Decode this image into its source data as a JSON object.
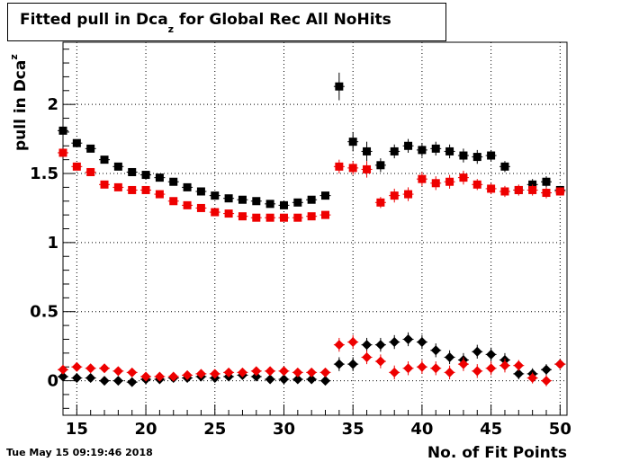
{
  "title": {
    "main": "Fitted pull in Dca",
    "sub": "z",
    "rest": " for Global Rec All NoHits"
  },
  "timestamp": "Tue May 15 09:19:46 2018",
  "colors": {
    "black": "#000000",
    "red": "#ee0000",
    "grid": "#000000"
  },
  "chart_data": {
    "type": "scatter",
    "xlabel": "No. of Fit Points",
    "ylabel": "pull in Dca",
    "ylabel_sub": "z",
    "xlim": [
      14,
      50.5
    ],
    "ylim": [
      -0.25,
      2.45
    ],
    "xticks": [
      15,
      20,
      25,
      30,
      35,
      40,
      45,
      50
    ],
    "yticks": [
      0,
      0.5,
      1,
      1.5,
      2
    ],
    "ytick_labels": [
      "0",
      "0.5",
      "1",
      "1.5",
      "2"
    ],
    "grid": true,
    "series": [
      {
        "marker": "square",
        "color": "#000000",
        "points": [
          [
            14,
            1.81,
            0.02
          ],
          [
            15,
            1.72,
            0.02
          ],
          [
            16,
            1.68,
            0.02
          ],
          [
            17,
            1.6,
            0.02
          ],
          [
            18,
            1.55,
            0.02
          ],
          [
            19,
            1.51,
            0.02
          ],
          [
            20,
            1.49,
            0.02
          ],
          [
            21,
            1.47,
            0.02
          ],
          [
            22,
            1.44,
            0.02
          ],
          [
            23,
            1.4,
            0.02
          ],
          [
            24,
            1.37,
            0.02
          ],
          [
            25,
            1.34,
            0.02
          ],
          [
            26,
            1.32,
            0.02
          ],
          [
            27,
            1.31,
            0.02
          ],
          [
            28,
            1.3,
            0.02
          ],
          [
            29,
            1.28,
            0.02
          ],
          [
            30,
            1.27,
            0.02
          ],
          [
            31,
            1.29,
            0.02
          ],
          [
            32,
            1.31,
            0.02
          ],
          [
            33,
            1.34,
            0.02
          ],
          [
            34,
            2.13,
            0.1
          ],
          [
            35,
            1.73,
            0.07
          ],
          [
            36,
            1.66,
            0.07
          ],
          [
            37,
            1.56,
            0.05
          ],
          [
            38,
            1.66,
            0.05
          ],
          [
            39,
            1.7,
            0.05
          ],
          [
            40,
            1.67,
            0.05
          ],
          [
            41,
            1.68,
            0.05
          ],
          [
            42,
            1.66,
            0.05
          ],
          [
            43,
            1.63,
            0.05
          ],
          [
            44,
            1.62,
            0.05
          ],
          [
            45,
            1.63,
            0.04
          ],
          [
            46,
            1.55,
            0.04
          ],
          [
            47,
            1.38,
            0.03
          ],
          [
            48,
            1.42,
            0.04
          ],
          [
            49,
            1.44,
            0.04
          ],
          [
            50,
            1.38,
            0.03
          ]
        ]
      },
      {
        "marker": "square",
        "color": "#ee0000",
        "points": [
          [
            14,
            1.65,
            0.02
          ],
          [
            15,
            1.55,
            0.02
          ],
          [
            16,
            1.51,
            0.02
          ],
          [
            17,
            1.42,
            0.02
          ],
          [
            18,
            1.4,
            0.02
          ],
          [
            19,
            1.38,
            0.02
          ],
          [
            20,
            1.38,
            0.02
          ],
          [
            21,
            1.35,
            0.02
          ],
          [
            22,
            1.3,
            0.02
          ],
          [
            23,
            1.27,
            0.02
          ],
          [
            24,
            1.25,
            0.02
          ],
          [
            25,
            1.22,
            0.02
          ],
          [
            26,
            1.21,
            0.02
          ],
          [
            27,
            1.19,
            0.02
          ],
          [
            28,
            1.18,
            0.02
          ],
          [
            29,
            1.18,
            0.02
          ],
          [
            30,
            1.18,
            0.02
          ],
          [
            31,
            1.18,
            0.02
          ],
          [
            32,
            1.19,
            0.02
          ],
          [
            33,
            1.2,
            0.02
          ],
          [
            34,
            1.55,
            0.05
          ],
          [
            35,
            1.54,
            0.05
          ],
          [
            36,
            1.53,
            0.06
          ],
          [
            37,
            1.29,
            0.04
          ],
          [
            38,
            1.34,
            0.05
          ],
          [
            39,
            1.35,
            0.05
          ],
          [
            40,
            1.46,
            0.05
          ],
          [
            41,
            1.43,
            0.05
          ],
          [
            42,
            1.44,
            0.05
          ],
          [
            43,
            1.47,
            0.05
          ],
          [
            44,
            1.42,
            0.04
          ],
          [
            45,
            1.39,
            0.04
          ],
          [
            46,
            1.37,
            0.04
          ],
          [
            47,
            1.38,
            0.04
          ],
          [
            48,
            1.38,
            0.04
          ],
          [
            49,
            1.36,
            0.04
          ],
          [
            50,
            1.37,
            0.03
          ]
        ]
      },
      {
        "marker": "diamond",
        "color": "#000000",
        "points": [
          [
            14,
            0.03,
            0.02
          ],
          [
            15,
            0.02,
            0.02
          ],
          [
            16,
            0.02,
            0.02
          ],
          [
            17,
            0.0,
            0.02
          ],
          [
            18,
            0.0,
            0.02
          ],
          [
            19,
            -0.01,
            0.02
          ],
          [
            20,
            0.01,
            0.02
          ],
          [
            21,
            0.01,
            0.02
          ],
          [
            22,
            0.02,
            0.02
          ],
          [
            23,
            0.02,
            0.02
          ],
          [
            24,
            0.03,
            0.02
          ],
          [
            25,
            0.02,
            0.02
          ],
          [
            26,
            0.03,
            0.02
          ],
          [
            27,
            0.04,
            0.02
          ],
          [
            28,
            0.03,
            0.02
          ],
          [
            29,
            0.01,
            0.02
          ],
          [
            30,
            0.01,
            0.02
          ],
          [
            31,
            0.01,
            0.02
          ],
          [
            32,
            0.01,
            0.02
          ],
          [
            33,
            0.0,
            0.02
          ],
          [
            34,
            0.12,
            0.05
          ],
          [
            35,
            0.12,
            0.05
          ],
          [
            36,
            0.26,
            0.05
          ],
          [
            37,
            0.26,
            0.05
          ],
          [
            38,
            0.28,
            0.05
          ],
          [
            39,
            0.3,
            0.05
          ],
          [
            40,
            0.28,
            0.05
          ],
          [
            41,
            0.22,
            0.05
          ],
          [
            42,
            0.17,
            0.05
          ],
          [
            43,
            0.15,
            0.05
          ],
          [
            44,
            0.21,
            0.05
          ],
          [
            45,
            0.19,
            0.05
          ],
          [
            46,
            0.15,
            0.05
          ],
          [
            47,
            0.05,
            0.04
          ],
          [
            48,
            0.05,
            0.04
          ],
          [
            49,
            0.08,
            0.04
          ],
          [
            50,
            0.12,
            0.03
          ]
        ]
      },
      {
        "marker": "diamond",
        "color": "#ee0000",
        "points": [
          [
            14,
            0.08,
            0.02
          ],
          [
            15,
            0.1,
            0.02
          ],
          [
            16,
            0.09,
            0.02
          ],
          [
            17,
            0.09,
            0.02
          ],
          [
            18,
            0.07,
            0.02
          ],
          [
            19,
            0.06,
            0.02
          ],
          [
            20,
            0.03,
            0.02
          ],
          [
            21,
            0.03,
            0.02
          ],
          [
            22,
            0.03,
            0.02
          ],
          [
            23,
            0.04,
            0.02
          ],
          [
            24,
            0.05,
            0.02
          ],
          [
            25,
            0.05,
            0.02
          ],
          [
            26,
            0.06,
            0.02
          ],
          [
            27,
            0.06,
            0.02
          ],
          [
            28,
            0.07,
            0.02
          ],
          [
            29,
            0.07,
            0.02
          ],
          [
            30,
            0.07,
            0.02
          ],
          [
            31,
            0.06,
            0.02
          ],
          [
            32,
            0.06,
            0.02
          ],
          [
            33,
            0.06,
            0.02
          ],
          [
            34,
            0.26,
            0.05
          ],
          [
            35,
            0.28,
            0.05
          ],
          [
            36,
            0.17,
            0.05
          ],
          [
            37,
            0.14,
            0.05
          ],
          [
            38,
            0.06,
            0.05
          ],
          [
            39,
            0.09,
            0.05
          ],
          [
            40,
            0.1,
            0.05
          ],
          [
            41,
            0.09,
            0.05
          ],
          [
            42,
            0.06,
            0.05
          ],
          [
            43,
            0.12,
            0.05
          ],
          [
            44,
            0.07,
            0.05
          ],
          [
            45,
            0.09,
            0.05
          ],
          [
            46,
            0.11,
            0.05
          ],
          [
            47,
            0.11,
            0.04
          ],
          [
            48,
            0.02,
            0.04
          ],
          [
            49,
            0.0,
            0.04
          ],
          [
            50,
            0.12,
            0.03
          ]
        ]
      }
    ]
  }
}
